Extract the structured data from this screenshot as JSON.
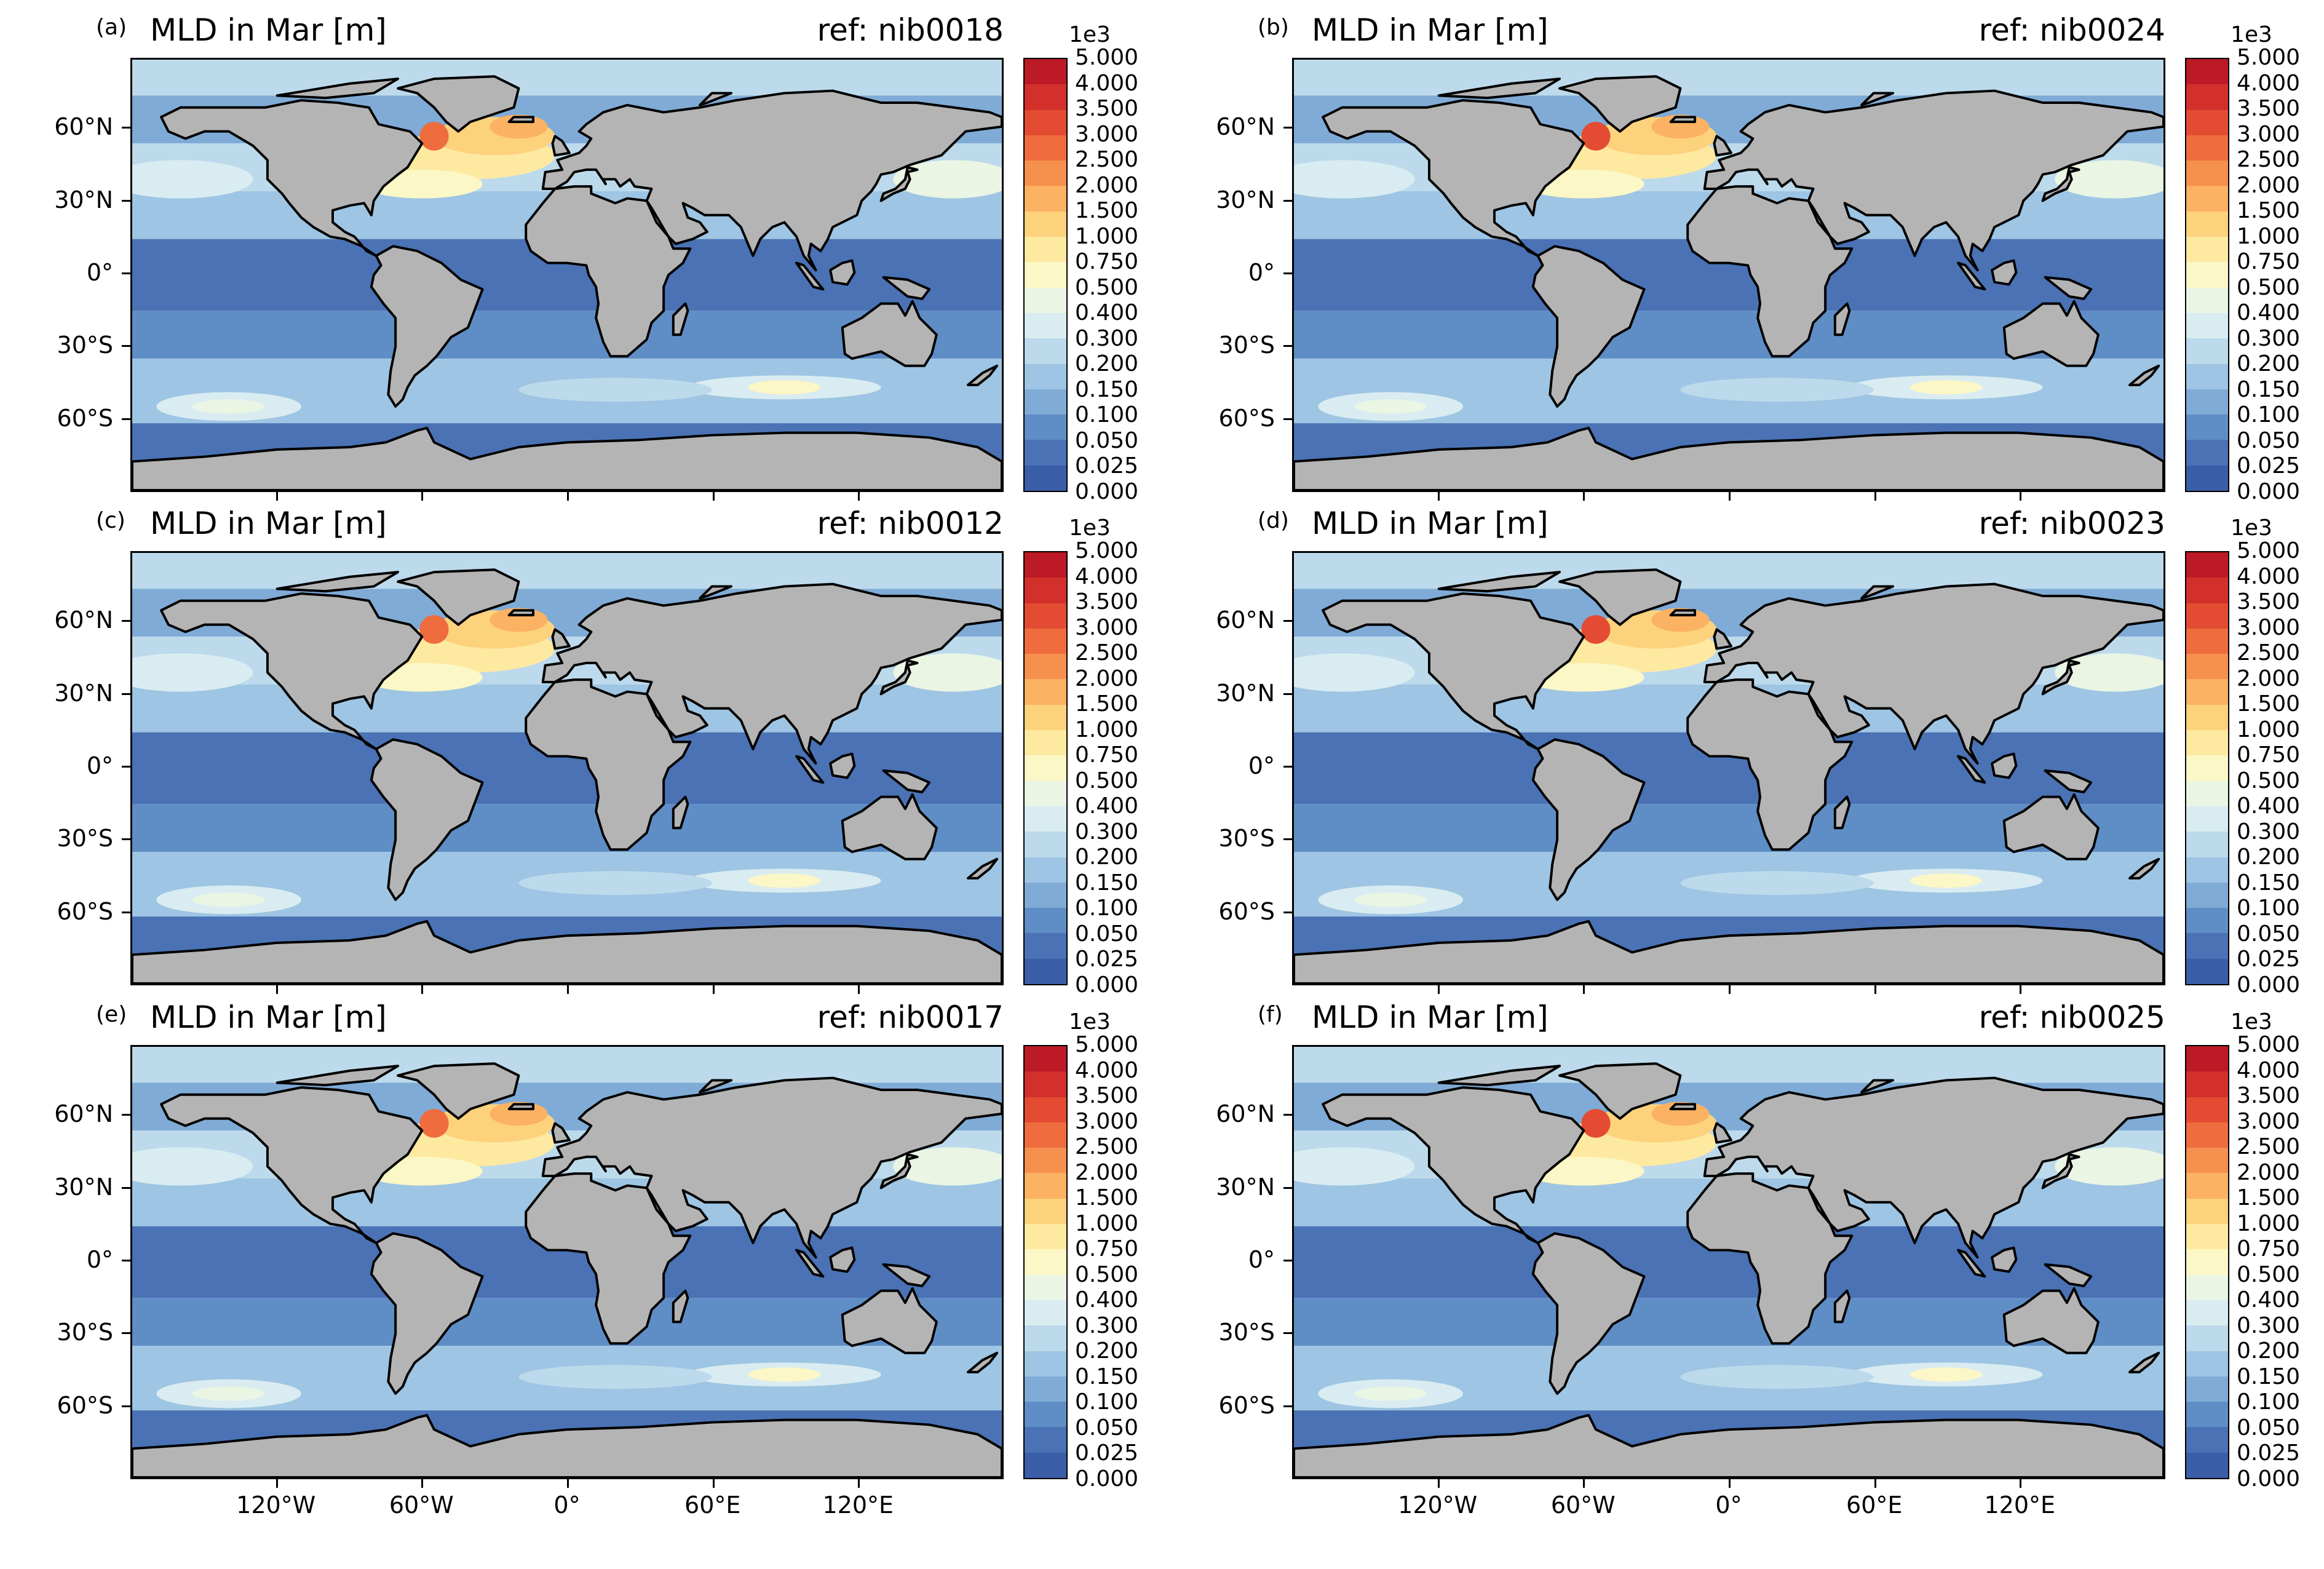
{
  "figure": {
    "colorbar": {
      "multiplier_label": "1e3",
      "ticks": [
        "0.000",
        "0.025",
        "0.050",
        "0.100",
        "0.150",
        "0.200",
        "0.300",
        "0.400",
        "0.500",
        "0.750",
        "1.000",
        "1.500",
        "2.000",
        "2.500",
        "3.000",
        "3.500",
        "4.000",
        "5.000"
      ],
      "colors": [
        "#3a5ea8",
        "#4a72b5",
        "#5f8ec6",
        "#7fabd6",
        "#9ec5e3",
        "#bcdaeb",
        "#d9ecf1",
        "#eaf5e4",
        "#fbf7c6",
        "#fee9a1",
        "#fdd27d",
        "#fbb262",
        "#f6904e",
        "#ee6c3e",
        "#e34c32",
        "#d32f2b",
        "#bb1a26"
      ]
    },
    "lat_labels": [
      "60°N",
      "30°N",
      "0°",
      "30°S",
      "60°S"
    ],
    "lon_labels": [
      "120°W",
      "60°W",
      "0°",
      "60°E",
      "120°E"
    ],
    "land_color": "#b4b4b4",
    "panels": [
      {
        "letter": "(a)",
        "title": "MLD in Mar [m]",
        "ref": "ref: nib0018"
      },
      {
        "letter": "(b)",
        "title": "MLD in Mar [m]",
        "ref": "ref: nib0024"
      },
      {
        "letter": "(c)",
        "title": "MLD in Mar [m]",
        "ref": "ref: nib0012"
      },
      {
        "letter": "(d)",
        "title": "MLD in Mar [m]",
        "ref": "ref: nib0023"
      },
      {
        "letter": "(e)",
        "title": "MLD in Mar [m]",
        "ref": "ref: nib0017"
      },
      {
        "letter": "(f)",
        "title": "MLD in Mar [m]",
        "ref": "ref: nib0025"
      }
    ]
  }
}
